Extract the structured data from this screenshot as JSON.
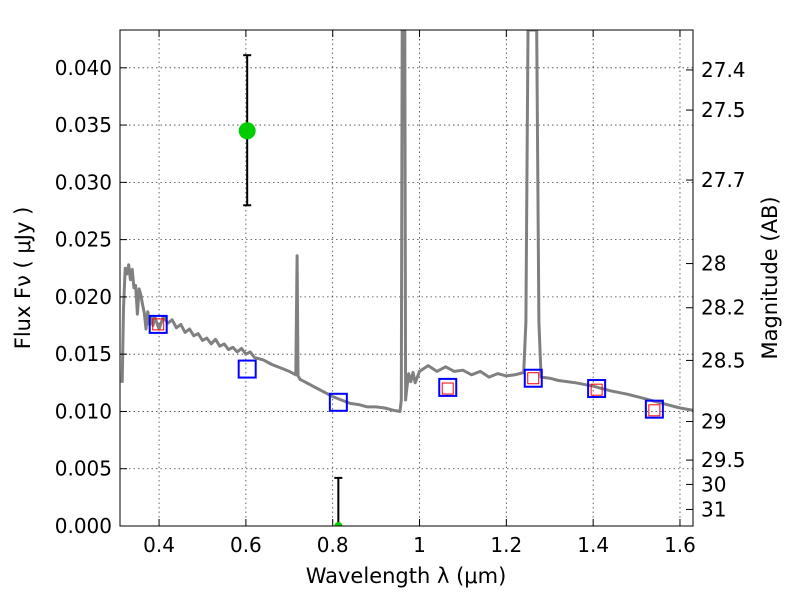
{
  "chart_data": {
    "type": "line",
    "xlabel": "Wavelength  λ (μm)",
    "ylabel": "Flux  Fν  ( μJy )",
    "ylabel_right": "Magnitude (AB)",
    "xlim": [
      0.31,
      1.63
    ],
    "ylim": [
      0.0,
      0.0433
    ],
    "grid": true,
    "x_ticks": [
      0.4,
      0.6,
      0.8,
      1.0,
      1.2,
      1.4,
      1.6
    ],
    "x_tick_labels": [
      "0.4",
      "0.6",
      "0.8",
      "1",
      "1.2",
      "1.4",
      "1.6"
    ],
    "y_ticks": [
      0.0,
      0.005,
      0.01,
      0.015,
      0.02,
      0.025,
      0.03,
      0.035,
      0.04
    ],
    "y_tick_labels": [
      "0.000",
      "0.005",
      "0.010",
      "0.015",
      "0.020",
      "0.025",
      "0.030",
      "0.035",
      "0.040"
    ],
    "mag_ticks": [
      27.4,
      27.5,
      27.7,
      28,
      28.2,
      28.5,
      29,
      29.5,
      30,
      31
    ],
    "mag_tick_labels": [
      "27.4",
      "27.5",
      "27.7",
      "28",
      "28.2",
      "28.5",
      "29",
      "29.5",
      "30",
      "31"
    ],
    "model_spectrum": {
      "color": "#808080",
      "x": [
        0.315,
        0.318,
        0.322,
        0.326,
        0.33,
        0.334,
        0.338,
        0.342,
        0.346,
        0.35,
        0.354,
        0.358,
        0.362,
        0.366,
        0.37,
        0.374,
        0.378,
        0.382,
        0.386,
        0.39,
        0.395,
        0.4,
        0.41,
        0.42,
        0.43,
        0.44,
        0.45,
        0.46,
        0.47,
        0.48,
        0.49,
        0.5,
        0.51,
        0.52,
        0.53,
        0.54,
        0.55,
        0.56,
        0.57,
        0.58,
        0.59,
        0.6,
        0.61,
        0.62,
        0.64,
        0.66,
        0.68,
        0.7,
        0.715,
        0.718,
        0.72,
        0.722,
        0.725,
        0.74,
        0.76,
        0.78,
        0.8,
        0.82,
        0.84,
        0.86,
        0.88,
        0.9,
        0.92,
        0.94,
        0.955,
        0.958,
        0.96,
        0.962,
        0.964,
        0.966,
        0.968,
        0.97,
        0.975,
        0.98,
        0.985,
        0.99,
        1.0,
        1.02,
        1.04,
        1.06,
        1.08,
        1.1,
        1.12,
        1.14,
        1.16,
        1.18,
        1.2,
        1.22,
        1.24,
        1.245,
        1.25,
        1.26,
        1.27,
        1.275,
        1.28,
        1.3,
        1.32,
        1.36,
        1.4,
        1.44,
        1.48,
        1.52,
        1.56,
        1.6,
        1.63
      ],
      "y": [
        0.0125,
        0.019,
        0.0225,
        0.022,
        0.0228,
        0.0215,
        0.0224,
        0.0208,
        0.021,
        0.0185,
        0.0207,
        0.0202,
        0.0193,
        0.0186,
        0.0172,
        0.0187,
        0.0176,
        0.0182,
        0.0175,
        0.0183,
        0.0177,
        0.0172,
        0.0183,
        0.0177,
        0.018,
        0.0173,
        0.0176,
        0.0169,
        0.0172,
        0.0166,
        0.0168,
        0.0162,
        0.0164,
        0.0159,
        0.0163,
        0.0157,
        0.0159,
        0.0154,
        0.0156,
        0.0152,
        0.0155,
        0.015,
        0.0152,
        0.0147,
        0.0145,
        0.0141,
        0.0138,
        0.0135,
        0.0132,
        0.0236,
        0.0131,
        0.013,
        0.0128,
        0.0125,
        0.0121,
        0.0117,
        0.0113,
        0.011,
        0.0107,
        0.0106,
        0.0104,
        0.0104,
        0.0103,
        0.0101,
        0.01,
        0.011,
        0.0433,
        0.0433,
        0.0433,
        0.0433,
        0.011,
        0.0118,
        0.0133,
        0.0126,
        0.0134,
        0.0125,
        0.0135,
        0.014,
        0.0135,
        0.0139,
        0.0135,
        0.0136,
        0.0132,
        0.0135,
        0.013,
        0.0133,
        0.0131,
        0.0132,
        0.0134,
        0.0178,
        0.0433,
        0.0433,
        0.0433,
        0.0178,
        0.013,
        0.0129,
        0.0127,
        0.0125,
        0.0122,
        0.0118,
        0.0115,
        0.0111,
        0.0107,
        0.0103,
        0.0101
      ]
    },
    "model_photometry_blue_squares": {
      "color": "#0000ff",
      "x": [
        0.398,
        0.603,
        0.813,
        1.065,
        1.262,
        1.408,
        1.541
      ],
      "y": [
        0.0176,
        0.0137,
        0.0108,
        0.0121,
        0.0129,
        0.012,
        0.0102
      ]
    },
    "observed_upper_red_squares": {
      "color": "#ff0000",
      "x": [
        0.398,
        1.065,
        1.262,
        1.408,
        1.541
      ],
      "y": [
        0.0176,
        0.012,
        0.0129,
        0.0119,
        0.0101
      ]
    },
    "detections_with_errorbars": {
      "color": "#00cc00",
      "points": [
        {
          "x": 0.603,
          "y": 0.0345,
          "yerr_low": 0.028,
          "yerr_high": 0.0411
        },
        {
          "x": 0.813,
          "y": 0.0,
          "yerr_low": 0.0,
          "yerr_high": 0.0042
        }
      ]
    }
  }
}
